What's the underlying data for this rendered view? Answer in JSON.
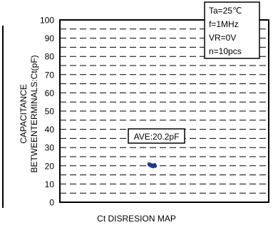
{
  "chart_data": {
    "type": "scatter",
    "title": "Ct DISRESION MAP",
    "ylabel_line1": "CAPACITANCE",
    "ylabel_line2": "BETWEENTERMINALS:Ct(pF)",
    "ylim": [
      0,
      100
    ],
    "yticks": [
      "0",
      "10",
      "20",
      "30",
      "40",
      "50",
      "60",
      "70",
      "80",
      "90",
      "100"
    ],
    "grid": "dashed",
    "conditions": [
      "Ta=25℃",
      "f=1MHz",
      "VR=0V",
      "n=10pcs"
    ],
    "annotation": "AVE:20.2pF",
    "points": [
      {
        "x": 0.0,
        "y": 20.9
      },
      {
        "x": 0.04,
        "y": 20.4
      },
      {
        "x": 0.08,
        "y": 20.7
      },
      {
        "x": 0.12,
        "y": 20.1
      },
      {
        "x": 0.16,
        "y": 19.8
      },
      {
        "x": 0.2,
        "y": 20.3
      },
      {
        "x": 0.24,
        "y": 19.6
      },
      {
        "x": 0.28,
        "y": 20.0
      },
      {
        "x": 0.32,
        "y": 20.5
      },
      {
        "x": 0.36,
        "y": 19.9
      }
    ],
    "marker_color": "#1f3a8a"
  }
}
